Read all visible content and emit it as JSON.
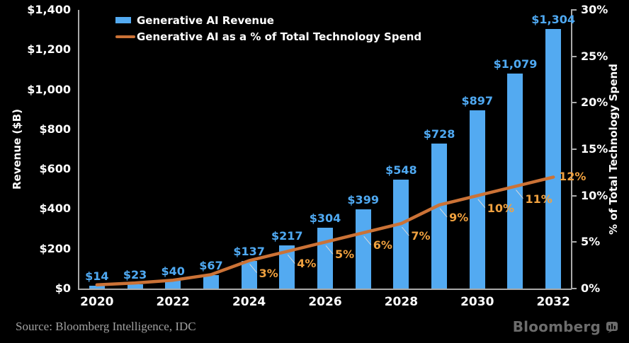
{
  "colors": {
    "background": "#000000",
    "bar": "#53aaf1",
    "bar_label": "#4fa9f2",
    "line": "#cb7236",
    "pct_label": "#f0a13f",
    "axis": "#aaaaaa",
    "tick_text": "#ffffff",
    "leader": "#d9d9d9",
    "source_text": "#a2a2a2",
    "logo": "#6c6c6c"
  },
  "legend": {
    "items": [
      {
        "label": "Generative AI Revenue",
        "marker": "bar-swatch",
        "color": "#53aaf1"
      },
      {
        "label": "Generative AI as a % of Total Technology Spend",
        "marker": "line-swatch",
        "color": "#cb7236"
      }
    ]
  },
  "left_axis": {
    "title": "Revenue ($B)",
    "tick_labels": [
      "$0",
      "$200",
      "$400",
      "$600",
      "$800",
      "$1,000",
      "$1,200",
      "$1,400"
    ],
    "min": 0,
    "max": 1400
  },
  "right_axis": {
    "title": "% of Total Technology Spend",
    "tick_labels": [
      "0%",
      "5%",
      "10%",
      "15%",
      "20%",
      "25%",
      "30%"
    ],
    "min": 0,
    "max": 30
  },
  "x_axis": {
    "tick_labels": [
      "2020",
      "2022",
      "2024",
      "2026",
      "2028",
      "2030",
      "2032"
    ]
  },
  "chart_data": [
    {
      "type": "bar",
      "name": "Generative AI Revenue",
      "categories": [
        2020,
        2021,
        2022,
        2023,
        2024,
        2025,
        2026,
        2027,
        2028,
        2029,
        2030,
        2031,
        2032
      ],
      "values": [
        14,
        23,
        40,
        67,
        137,
        217,
        304,
        399,
        548,
        728,
        897,
        1079,
        1304
      ],
      "labels": [
        "$14",
        "$23",
        "$40",
        "$67",
        "$137",
        "$217",
        "$304",
        "$399",
        "$548",
        "$728",
        "$897",
        "$1,079",
        "$1,304"
      ],
      "ylabel": "Revenue ($B)",
      "ylim": [
        0,
        1400
      ],
      "color": "#53aaf1"
    },
    {
      "type": "line",
      "name": "Generative AI as a % of Total Technology Spend",
      "categories": [
        2020,
        2021,
        2022,
        2023,
        2024,
        2025,
        2026,
        2027,
        2028,
        2029,
        2030,
        2031,
        2032
      ],
      "values": [
        0.4,
        0.6,
        0.9,
        1.5,
        3,
        4,
        5,
        6,
        7,
        9,
        10,
        11,
        12
      ],
      "labels": [
        "",
        "",
        "",
        "",
        "3%",
        "4%",
        "5%",
        "6%",
        "7%",
        "9%",
        "10%",
        "11%",
        "12%"
      ],
      "ylabel": "% of Total Technology Spend",
      "ylim": [
        0,
        30
      ],
      "color": "#cb7236"
    }
  ],
  "source": "Source: Bloomberg Intelligence, IDC",
  "brand": "Bloomberg"
}
